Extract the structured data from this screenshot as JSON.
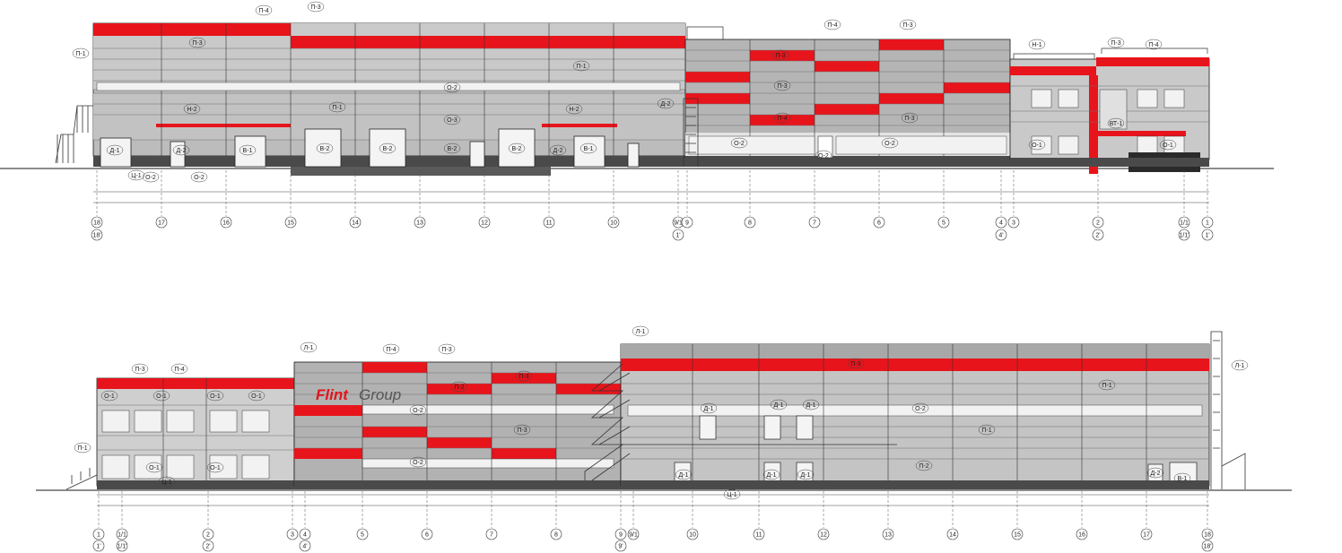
{
  "colors": {
    "panel_light": "#d4d4d4",
    "panel_mid": "#b9b9b9",
    "panel_dark": "#8f8f8f",
    "accent_red": "#e8141b",
    "plinth": "#4a4a4a",
    "line": "#1a1a1a"
  },
  "facade_top": {
    "panel_labels": [
      "П-4",
      "П-3",
      "П-3",
      "П-1",
      "П-1",
      "О-2",
      "П-1",
      "Н-2",
      "Н-2",
      "О-3",
      "Д-2",
      "П-3",
      "П-4",
      "П-3",
      "П-3",
      "П-3",
      "П-4",
      "О-2",
      "О-2",
      "Н-1",
      "П-3",
      "П-4",
      "ВТ-1",
      "О-1",
      "О-1"
    ],
    "door_labels": [
      "В-2",
      "В-2",
      "В-2",
      "В-2",
      "В-1",
      "В-1",
      "Д-2",
      "Д-2",
      "Д-1",
      "Ц-1",
      "О-2",
      "О-2",
      "О-2"
    ],
    "axis_labels": [
      "18",
      "17",
      "16",
      "15",
      "14",
      "13",
      "12",
      "11",
      "10",
      "9/1",
      "9",
      "8",
      "7",
      "6",
      "5",
      "4",
      "3",
      "2",
      "1/1",
      "1"
    ],
    "axis_sub_labels": [
      "18'",
      "1'",
      "4'",
      "2'",
      "1/1'",
      "1'"
    ]
  },
  "facade_bottom": {
    "logo_part1": "Flint",
    "logo_part2": "Group",
    "panel_labels": [
      "П-3",
      "П-4",
      "О-1",
      "О-1",
      "О-1",
      "О-1",
      "П-1",
      "О-1",
      "О-1",
      "Ц-1",
      "Л-1",
      "П-4",
      "П-3",
      "П-2",
      "П-3",
      "О-2",
      "П-3",
      "О-2",
      "Л-1",
      "П-1",
      "П-3",
      "О-2",
      "П-1",
      "П-2",
      "Д-1",
      "Д-1",
      "Д-1",
      "Л-1"
    ],
    "door_labels": [
      "Д-1",
      "Д-1",
      "Д-1",
      "Д-2",
      "В-1",
      "Ц-1"
    ],
    "axis_labels": [
      "1",
      "1/1",
      "2",
      "3",
      "4",
      "5",
      "6",
      "7",
      "8",
      "9",
      "9/1",
      "10",
      "11",
      "12",
      "13",
      "14",
      "15",
      "16",
      "17",
      "18"
    ],
    "axis_sub_labels": [
      "1'",
      "1/1'",
      "2'",
      "4'",
      "9'",
      "18'"
    ]
  }
}
